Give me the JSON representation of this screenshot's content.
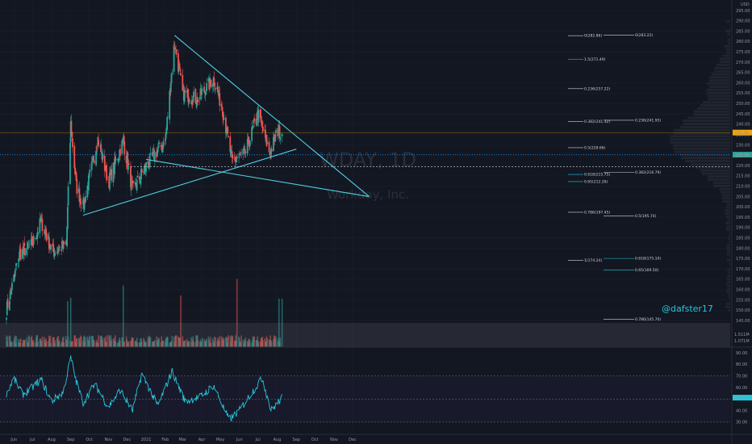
{
  "chart_data": [
    {
      "type": "candlestick",
      "title": "WDAY, 1D",
      "subtitle": "Workday, Inc.",
      "currency": "USD",
      "watermark": "@dafster17",
      "x_tick_labels": [
        "Jun",
        "Jul",
        "Aug",
        "Sep",
        "Oct",
        "Nov",
        "Dec",
        "2021",
        "Feb",
        "Mar",
        "Apr",
        "May",
        "Jun",
        "Jul",
        "Aug",
        "Sep",
        "Oct",
        "Nov",
        "Dec"
      ],
      "y_tick_labels": [
        295,
        290,
        285,
        280,
        275,
        270,
        265,
        260,
        255,
        250,
        245,
        240,
        235,
        230,
        225,
        220,
        215,
        210,
        205,
        200,
        195,
        190,
        185,
        180,
        175,
        170,
        165,
        160,
        155,
        150,
        145
      ],
      "ylim": [
        140,
        297
      ],
      "current_price_label": "235.99",
      "reference_price_label": "225.30",
      "volume_labels": [
        "1.511M",
        "1.071M"
      ],
      "fib_levels": [
        {
          "label": "0(282.86)",
          "value": 282.86
        },
        {
          "label": "0(283.22)",
          "value": 283.22
        },
        {
          "label": "1.5(271.49)",
          "value": 271.49
        },
        {
          "label": "0.236(257.22)",
          "value": 257.22
        },
        {
          "label": "0.382(241.32)",
          "value": 241.32
        },
        {
          "label": "0.236(241.95)",
          "value": 241.95
        },
        {
          "label": "0.5(228.66)",
          "value": 228.66
        },
        {
          "label": "0.382(216.79)",
          "value": 216.79
        },
        {
          "label": "0.618(215.75)",
          "value": 215.75
        },
        {
          "label": "0.65(212.26)",
          "value": 212.26
        },
        {
          "label": "0.786(197.45)",
          "value": 197.45
        },
        {
          "label": "0.5(195.74)",
          "value": 195.74
        },
        {
          "label": "1(174.24)",
          "value": 174.24
        },
        {
          "label": "0.618(175.10)",
          "value": 175.1
        },
        {
          "label": "0.65(169.50)",
          "value": 169.5
        },
        {
          "label": "0.786(145.70)",
          "value": 145.7
        }
      ],
      "trendlines": [
        {
          "name": "upper-falling-trendline",
          "points": [
            [
              "2021-02-16",
              283
            ],
            [
              "2021-12-28",
              205
            ]
          ]
        },
        {
          "name": "lower-rising-trendline",
          "points": [
            [
              "2020-09-21",
              196
            ],
            [
              "2021-09-01",
              228
            ]
          ]
        },
        {
          "name": "lower-falling-trendline",
          "points": [
            [
              "2021-01-01",
              223
            ],
            [
              "2021-12-28",
              205
            ]
          ]
        }
      ],
      "ohlc_anchor_closes": [
        {
          "date": "2020-05-20",
          "close": 150
        },
        {
          "date": "2020-06-10",
          "close": 177
        },
        {
          "date": "2020-07-01",
          "close": 182
        },
        {
          "date": "2020-07-15",
          "close": 193
        },
        {
          "date": "2020-08-03",
          "close": 178
        },
        {
          "date": "2020-08-25",
          "close": 182
        },
        {
          "date": "2020-09-01",
          "close": 240
        },
        {
          "date": "2020-09-10",
          "close": 210
        },
        {
          "date": "2020-09-21",
          "close": 200
        },
        {
          "date": "2020-10-15",
          "close": 233
        },
        {
          "date": "2020-11-01",
          "close": 212
        },
        {
          "date": "2020-11-25",
          "close": 232
        },
        {
          "date": "2020-12-10",
          "close": 208
        },
        {
          "date": "2021-01-01",
          "close": 220
        },
        {
          "date": "2021-02-01",
          "close": 232
        },
        {
          "date": "2021-02-16",
          "close": 280
        },
        {
          "date": "2021-03-01",
          "close": 255
        },
        {
          "date": "2021-03-25",
          "close": 252
        },
        {
          "date": "2021-04-20",
          "close": 262
        },
        {
          "date": "2021-05-05",
          "close": 247
        },
        {
          "date": "2021-05-20",
          "close": 222
        },
        {
          "date": "2021-06-10",
          "close": 226
        },
        {
          "date": "2021-07-01",
          "close": 245
        },
        {
          "date": "2021-07-20",
          "close": 226
        },
        {
          "date": "2021-08-02",
          "close": 237
        },
        {
          "date": "2021-08-09",
          "close": 236
        }
      ]
    },
    {
      "type": "line",
      "name": "RSI",
      "y_tick_labels": [
        90,
        80,
        70,
        60,
        50,
        40,
        30
      ],
      "ylim": [
        25,
        93
      ],
      "current_value_label": "51.23",
      "anchors": [
        {
          "date": "2020-05-20",
          "value": 55
        },
        {
          "date": "2020-06-01",
          "value": 68
        },
        {
          "date": "2020-06-15",
          "value": 54
        },
        {
          "date": "2020-07-01",
          "value": 60
        },
        {
          "date": "2020-07-15",
          "value": 67
        },
        {
          "date": "2020-08-01",
          "value": 48
        },
        {
          "date": "2020-08-20",
          "value": 56
        },
        {
          "date": "2020-09-01",
          "value": 86
        },
        {
          "date": "2020-09-10",
          "value": 65
        },
        {
          "date": "2020-09-21",
          "value": 47
        },
        {
          "date": "2020-10-10",
          "value": 63
        },
        {
          "date": "2020-11-01",
          "value": 43
        },
        {
          "date": "2020-11-20",
          "value": 58
        },
        {
          "date": "2020-12-10",
          "value": 40
        },
        {
          "date": "2020-12-25",
          "value": 72
        },
        {
          "date": "2021-01-20",
          "value": 44
        },
        {
          "date": "2021-02-12",
          "value": 74
        },
        {
          "date": "2021-03-05",
          "value": 48
        },
        {
          "date": "2021-03-30",
          "value": 52
        },
        {
          "date": "2021-04-20",
          "value": 62
        },
        {
          "date": "2021-05-15",
          "value": 32
        },
        {
          "date": "2021-06-01",
          "value": 40
        },
        {
          "date": "2021-06-20",
          "value": 55
        },
        {
          "date": "2021-07-08",
          "value": 68
        },
        {
          "date": "2021-07-22",
          "value": 40
        },
        {
          "date": "2021-08-09",
          "value": 51
        }
      ]
    }
  ]
}
